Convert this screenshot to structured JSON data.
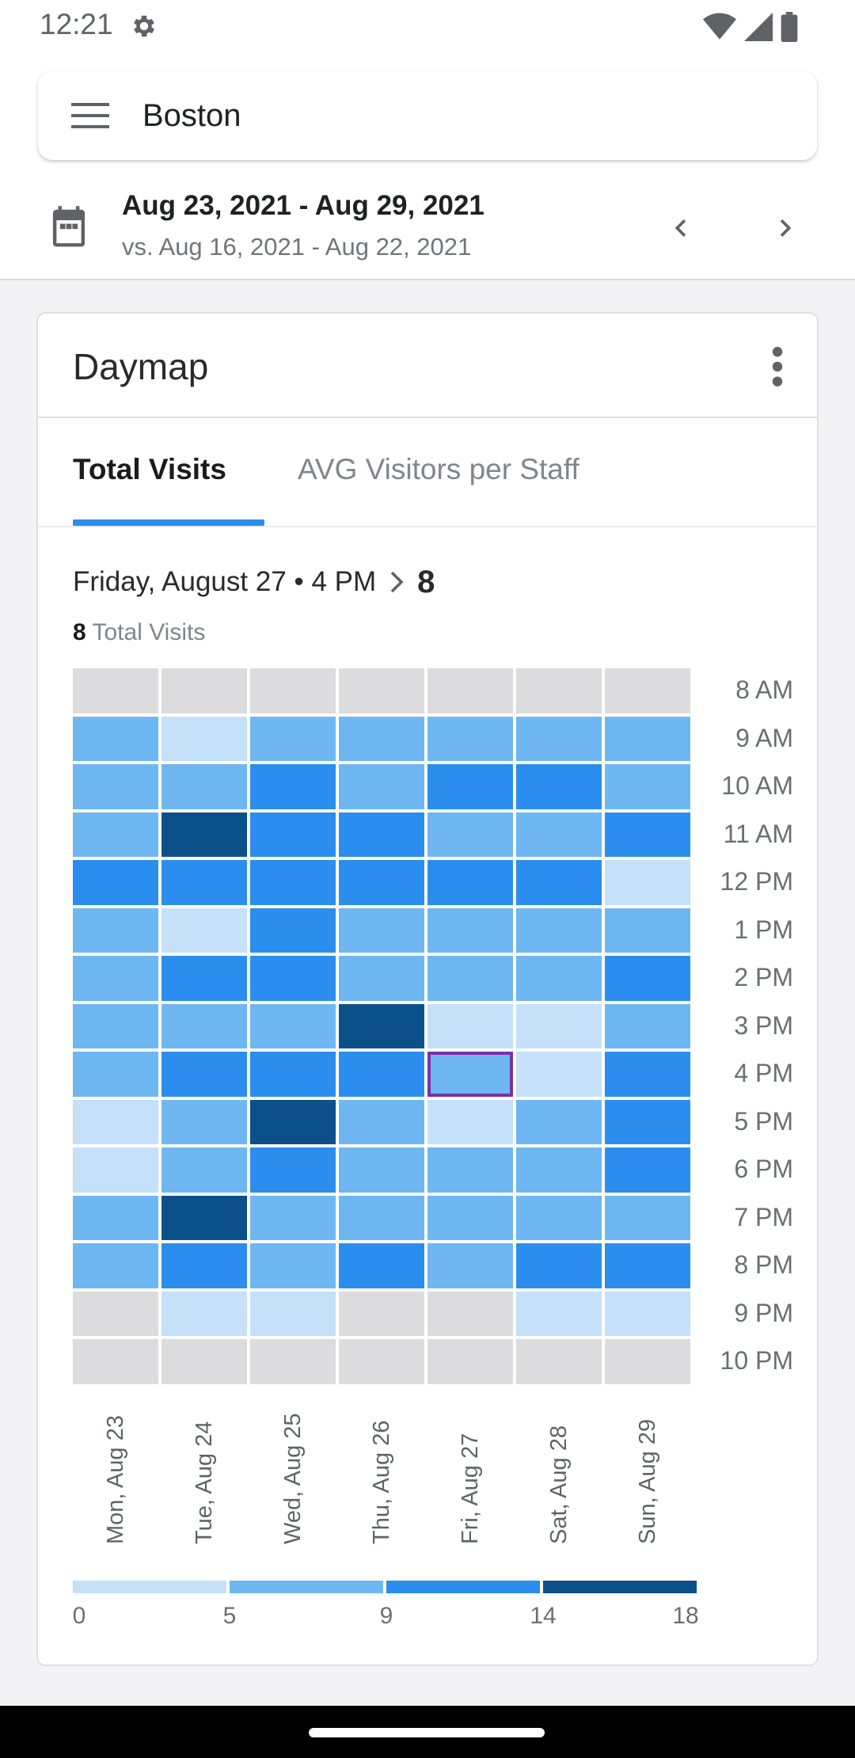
{
  "status": {
    "time": "12:21"
  },
  "search": {
    "title": "Boston"
  },
  "date_range": {
    "main": "Aug 23, 2021 - Aug 29, 2021",
    "compare": "vs. Aug 16, 2021 - Aug 22, 2021"
  },
  "card": {
    "title": "Daymap",
    "tabs": [
      {
        "label": "Total Visits",
        "active": true
      },
      {
        "label": "AVG Visitors per Staff",
        "active": false
      }
    ],
    "selection": {
      "label": "Friday, August 27 • 4 PM",
      "value": "8",
      "count": "8",
      "count_label": "Total Visits"
    }
  },
  "colors": {
    "empty": "#dcdcde",
    "level1": "#c4e1f9",
    "level2": "#6eb7f2",
    "level3": "#2b8ded",
    "level4": "#0c508a",
    "selected_border": "#7b2fa7",
    "accent": "#2b8ded"
  },
  "chart_data": {
    "type": "heatmap",
    "x": [
      "Mon, Aug 23",
      "Tue, Aug 24",
      "Wed, Aug 25",
      "Thu, Aug 26",
      "Fri, Aug 27",
      "Sat, Aug 28",
      "Sun, Aug 29"
    ],
    "y": [
      "8 AM",
      "9 AM",
      "10 AM",
      "11 AM",
      "12 PM",
      "1 PM",
      "2 PM",
      "3 PM",
      "4 PM",
      "5 PM",
      "6 PM",
      "7 PM",
      "8 PM",
      "9 PM",
      "10 PM"
    ],
    "levels": [
      [
        0,
        0,
        0,
        0,
        0,
        0,
        0
      ],
      [
        2,
        1,
        2,
        2,
        2,
        2,
        2
      ],
      [
        2,
        2,
        3,
        2,
        3,
        3,
        2
      ],
      [
        2,
        4,
        3,
        3,
        2,
        2,
        3
      ],
      [
        3,
        3,
        3,
        3,
        3,
        3,
        1
      ],
      [
        2,
        1,
        3,
        2,
        2,
        2,
        2
      ],
      [
        2,
        3,
        3,
        2,
        2,
        2,
        3
      ],
      [
        2,
        2,
        2,
        4,
        1,
        1,
        2
      ],
      [
        2,
        3,
        3,
        3,
        2,
        1,
        3
      ],
      [
        1,
        2,
        4,
        2,
        1,
        2,
        3
      ],
      [
        1,
        2,
        3,
        2,
        2,
        2,
        3
      ],
      [
        2,
        4,
        2,
        2,
        2,
        2,
        2
      ],
      [
        2,
        3,
        2,
        3,
        2,
        3,
        3
      ],
      [
        0,
        1,
        1,
        0,
        0,
        1,
        1
      ],
      [
        0,
        0,
        0,
        0,
        0,
        0,
        0
      ]
    ],
    "selected": {
      "x": "Fri, Aug 27",
      "y": "4 PM",
      "value": 8
    },
    "legend_ticks": [
      "0",
      "5",
      "9",
      "14",
      "18"
    ]
  }
}
